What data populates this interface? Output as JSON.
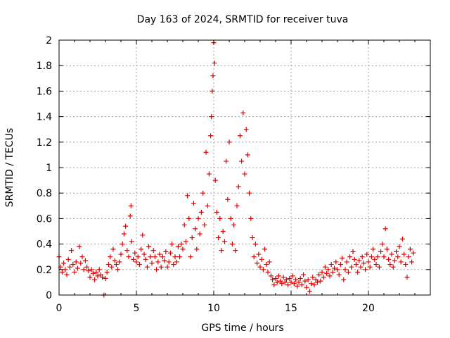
{
  "chart_data": {
    "type": "scatter",
    "title": "Day 163 of 2024, SRMTID for receiver tuva",
    "xlabel": "GPS time / hours",
    "ylabel": "SRMTID / TECUs",
    "xlim": [
      0,
      24
    ],
    "ylim": [
      0,
      2
    ],
    "xticks": [
      0,
      5,
      10,
      15,
      20
    ],
    "xtick_labels": [
      "0",
      "5",
      "10",
      "15",
      "20"
    ],
    "yticks": [
      0,
      0.2,
      0.4,
      0.6,
      0.8,
      1,
      1.2,
      1.4,
      1.6,
      1.8,
      2
    ],
    "ytick_labels": [
      "0",
      "0.2",
      "0.4",
      "0.6",
      "0.8",
      "1",
      "1.2",
      "1.4",
      "1.6",
      "1.8",
      "2"
    ],
    "grid": true,
    "marker": "+",
    "color": "#e00000",
    "series": [
      {
        "name": "SRMTID",
        "points": [
          [
            0.0,
            0.3
          ],
          [
            0.1,
            0.22
          ],
          [
            0.2,
            0.18
          ],
          [
            0.3,
            0.25
          ],
          [
            0.4,
            0.2
          ],
          [
            0.5,
            0.16
          ],
          [
            0.6,
            0.28
          ],
          [
            0.7,
            0.22
          ],
          [
            0.8,
            0.35
          ],
          [
            0.9,
            0.24
          ],
          [
            1.0,
            0.18
          ],
          [
            1.1,
            0.26
          ],
          [
            1.2,
            0.21
          ],
          [
            1.3,
            0.38
          ],
          [
            1.4,
            0.25
          ],
          [
            1.5,
            0.3
          ],
          [
            1.6,
            0.2
          ],
          [
            1.7,
            0.27
          ],
          [
            1.8,
            0.22
          ],
          [
            1.9,
            0.19
          ],
          [
            2.0,
            0.14
          ],
          [
            2.1,
            0.2
          ],
          [
            2.2,
            0.17
          ],
          [
            2.3,
            0.12
          ],
          [
            2.4,
            0.18
          ],
          [
            2.5,
            0.15
          ],
          [
            2.6,
            0.2
          ],
          [
            2.7,
            0.16
          ],
          [
            2.8,
            0.14
          ],
          [
            2.9,
            0.0
          ],
          [
            3.0,
            0.13
          ],
          [
            3.1,
            0.18
          ],
          [
            3.2,
            0.24
          ],
          [
            3.3,
            0.3
          ],
          [
            3.4,
            0.22
          ],
          [
            3.5,
            0.36
          ],
          [
            3.6,
            0.27
          ],
          [
            3.7,
            0.24
          ],
          [
            3.8,
            0.2
          ],
          [
            3.9,
            0.26
          ],
          [
            4.0,
            0.32
          ],
          [
            4.1,
            0.4
          ],
          [
            4.2,
            0.48
          ],
          [
            4.3,
            0.54
          ],
          [
            4.4,
            0.35
          ],
          [
            4.5,
            0.3
          ],
          [
            4.6,
            0.62
          ],
          [
            4.65,
            0.7
          ],
          [
            4.7,
            0.42
          ],
          [
            4.8,
            0.28
          ],
          [
            4.9,
            0.33
          ],
          [
            5.0,
            0.26
          ],
          [
            5.1,
            0.3
          ],
          [
            5.2,
            0.24
          ],
          [
            5.3,
            0.36
          ],
          [
            5.4,
            0.47
          ],
          [
            5.5,
            0.32
          ],
          [
            5.6,
            0.28
          ],
          [
            5.7,
            0.22
          ],
          [
            5.8,
            0.38
          ],
          [
            5.9,
            0.3
          ],
          [
            6.0,
            0.25
          ],
          [
            6.1,
            0.35
          ],
          [
            6.2,
            0.3
          ],
          [
            6.3,
            0.2
          ],
          [
            6.4,
            0.26
          ],
          [
            6.5,
            0.32
          ],
          [
            6.6,
            0.22
          ],
          [
            6.7,
            0.3
          ],
          [
            6.8,
            0.27
          ],
          [
            6.9,
            0.34
          ],
          [
            7.0,
            0.22
          ],
          [
            7.1,
            0.26
          ],
          [
            7.2,
            0.33
          ],
          [
            7.3,
            0.4
          ],
          [
            7.4,
            0.24
          ],
          [
            7.5,
            0.3
          ],
          [
            7.6,
            0.26
          ],
          [
            7.7,
            0.38
          ],
          [
            7.8,
            0.3
          ],
          [
            7.9,
            0.4
          ],
          [
            8.0,
            0.36
          ],
          [
            8.1,
            0.55
          ],
          [
            8.2,
            0.42
          ],
          [
            8.3,
            0.78
          ],
          [
            8.4,
            0.6
          ],
          [
            8.5,
            0.3
          ],
          [
            8.6,
            0.45
          ],
          [
            8.7,
            0.72
          ],
          [
            8.8,
            0.52
          ],
          [
            8.9,
            0.36
          ],
          [
            9.0,
            0.6
          ],
          [
            9.1,
            0.48
          ],
          [
            9.2,
            0.65
          ],
          [
            9.3,
            0.8
          ],
          [
            9.4,
            0.55
          ],
          [
            9.5,
            1.12
          ],
          [
            9.6,
            0.7
          ],
          [
            9.7,
            0.95
          ],
          [
            9.8,
            1.25
          ],
          [
            9.85,
            1.4
          ],
          [
            9.9,
            1.6
          ],
          [
            9.95,
            1.72
          ],
          [
            10.0,
            1.98
          ],
          [
            10.05,
            1.82
          ],
          [
            10.1,
            0.9
          ],
          [
            10.2,
            0.65
          ],
          [
            10.3,
            0.45
          ],
          [
            10.4,
            0.6
          ],
          [
            10.5,
            0.35
          ],
          [
            10.6,
            0.5
          ],
          [
            10.7,
            0.42
          ],
          [
            10.8,
            1.05
          ],
          [
            10.9,
            0.75
          ],
          [
            11.0,
            1.2
          ],
          [
            11.1,
            0.6
          ],
          [
            11.2,
            0.4
          ],
          [
            11.3,
            0.55
          ],
          [
            11.4,
            0.35
          ],
          [
            11.5,
            0.7
          ],
          [
            11.6,
            0.85
          ],
          [
            11.7,
            1.25
          ],
          [
            11.8,
            1.05
          ],
          [
            11.9,
            1.43
          ],
          [
            12.0,
            0.95
          ],
          [
            12.1,
            1.3
          ],
          [
            12.2,
            1.1
          ],
          [
            12.3,
            0.8
          ],
          [
            12.4,
            0.6
          ],
          [
            12.5,
            0.45
          ],
          [
            12.6,
            0.3
          ],
          [
            12.7,
            0.4
          ],
          [
            12.8,
            0.25
          ],
          [
            12.9,
            0.32
          ],
          [
            13.0,
            0.22
          ],
          [
            13.1,
            0.28
          ],
          [
            13.2,
            0.2
          ],
          [
            13.3,
            0.36
          ],
          [
            13.4,
            0.24
          ],
          [
            13.5,
            0.18
          ],
          [
            13.6,
            0.26
          ],
          [
            13.7,
            0.15
          ],
          [
            13.8,
            0.12
          ],
          [
            13.9,
            0.08
          ],
          [
            14.0,
            0.13
          ],
          [
            14.1,
            0.1
          ],
          [
            14.2,
            0.15
          ],
          [
            14.3,
            0.11
          ],
          [
            14.4,
            0.09
          ],
          [
            14.5,
            0.14
          ],
          [
            14.6,
            0.1
          ],
          [
            14.7,
            0.12
          ],
          [
            14.8,
            0.08
          ],
          [
            14.9,
            0.13
          ],
          [
            15.0,
            0.1
          ],
          [
            15.1,
            0.15
          ],
          [
            15.2,
            0.09
          ],
          [
            15.3,
            0.12
          ],
          [
            15.4,
            0.07
          ],
          [
            15.5,
            0.1
          ],
          [
            15.6,
            0.13
          ],
          [
            15.7,
            0.08
          ],
          [
            15.8,
            0.16
          ],
          [
            15.9,
            0.11
          ],
          [
            16.0,
            0.06
          ],
          [
            16.1,
            0.12
          ],
          [
            16.2,
            0.03
          ],
          [
            16.3,
            0.09
          ],
          [
            16.4,
            0.14
          ],
          [
            16.5,
            0.08
          ],
          [
            16.6,
            0.12
          ],
          [
            16.7,
            0.1
          ],
          [
            16.8,
            0.16
          ],
          [
            16.9,
            0.11
          ],
          [
            17.0,
            0.18
          ],
          [
            17.1,
            0.14
          ],
          [
            17.2,
            0.22
          ],
          [
            17.3,
            0.17
          ],
          [
            17.4,
            0.2
          ],
          [
            17.5,
            0.15
          ],
          [
            17.6,
            0.24
          ],
          [
            17.7,
            0.18
          ],
          [
            17.8,
            0.21
          ],
          [
            17.9,
            0.26
          ],
          [
            18.0,
            0.2
          ],
          [
            18.1,
            0.16
          ],
          [
            18.2,
            0.24
          ],
          [
            18.3,
            0.29
          ],
          [
            18.4,
            0.12
          ],
          [
            18.5,
            0.2
          ],
          [
            18.6,
            0.26
          ],
          [
            18.7,
            0.18
          ],
          [
            18.8,
            0.3
          ],
          [
            18.9,
            0.22
          ],
          [
            19.0,
            0.34
          ],
          [
            19.1,
            0.28
          ],
          [
            19.2,
            0.24
          ],
          [
            19.3,
            0.18
          ],
          [
            19.4,
            0.27
          ],
          [
            19.5,
            0.22
          ],
          [
            19.6,
            0.3
          ],
          [
            19.7,
            0.25
          ],
          [
            19.8,
            0.2
          ],
          [
            19.9,
            0.32
          ],
          [
            20.0,
            0.26
          ],
          [
            20.1,
            0.22
          ],
          [
            20.2,
            0.3
          ],
          [
            20.3,
            0.36
          ],
          [
            20.4,
            0.28
          ],
          [
            20.5,
            0.24
          ],
          [
            20.6,
            0.3
          ],
          [
            20.7,
            0.22
          ],
          [
            20.8,
            0.34
          ],
          [
            20.9,
            0.4
          ],
          [
            21.0,
            0.3
          ],
          [
            21.1,
            0.52
          ],
          [
            21.2,
            0.36
          ],
          [
            21.3,
            0.28
          ],
          [
            21.4,
            0.24
          ],
          [
            21.5,
            0.32
          ],
          [
            21.6,
            0.22
          ],
          [
            21.7,
            0.27
          ],
          [
            21.8,
            0.34
          ],
          [
            21.9,
            0.3
          ],
          [
            22.0,
            0.38
          ],
          [
            22.1,
            0.26
          ],
          [
            22.2,
            0.44
          ],
          [
            22.3,
            0.32
          ],
          [
            22.4,
            0.24
          ],
          [
            22.5,
            0.14
          ],
          [
            22.6,
            0.3
          ],
          [
            22.7,
            0.36
          ],
          [
            22.8,
            0.26
          ],
          [
            22.9,
            0.33
          ]
        ]
      }
    ]
  }
}
